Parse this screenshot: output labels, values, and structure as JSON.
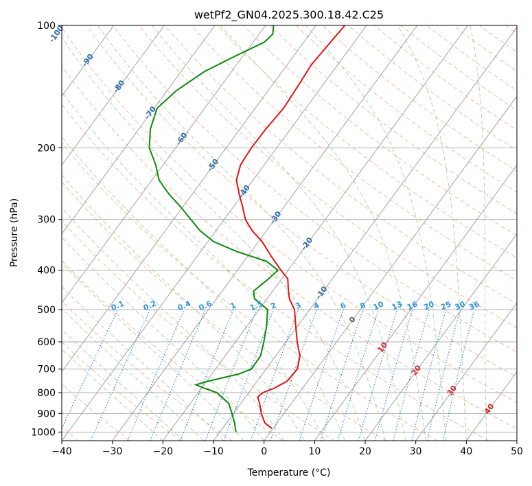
{
  "chart_data": {
    "type": "skew-t",
    "title": "wetPf2_GN04.2025.300.18.42.C25",
    "xlabel": "Temperature (°C)",
    "ylabel": "Pressure (hPa)",
    "xlim": [
      -40,
      50
    ],
    "ylim": [
      1050,
      100
    ],
    "x_ticks": [
      -40,
      -30,
      -20,
      -10,
      0,
      10,
      20,
      30,
      40,
      50
    ],
    "x_tick_labels": [
      "−40",
      "−30",
      "−20",
      "−10",
      "0",
      "10",
      "20",
      "30",
      "40",
      "50"
    ],
    "y_ticks": [
      1000,
      900,
      800,
      700,
      600,
      500,
      400,
      300,
      200,
      100
    ],
    "y_tick_labels": [
      "1000",
      "900",
      "800",
      "700",
      "600",
      "500",
      "400",
      "300",
      "200",
      "100"
    ],
    "colors": {
      "temperature": "#e8120c",
      "dewpoint": "#0a8a0a",
      "isotherm": "#999999",
      "dry_adiabat": "#f4a582",
      "moist_adiabat": "#8fc98f",
      "mixing_ratio": "#1e7ad6",
      "label_blue": "#2a6eb0",
      "label_red": "#d62728",
      "label_lightblue": "#2f95e8"
    },
    "series": [
      {
        "name": "temperature",
        "color": "#e8120c",
        "points": [
          {
            "p": 980,
            "t": -0.2
          },
          {
            "p": 950,
            "t": -2.4
          },
          {
            "p": 900,
            "t": -4.5
          },
          {
            "p": 850,
            "t": -6.3
          },
          {
            "p": 820,
            "t": -7.6
          },
          {
            "p": 800,
            "t": -7.2
          },
          {
            "p": 780,
            "t": -5.6
          },
          {
            "p": 750,
            "t": -4.1
          },
          {
            "p": 700,
            "t": -3.8
          },
          {
            "p": 650,
            "t": -5.2
          },
          {
            "p": 600,
            "t": -7.8
          },
          {
            "p": 550,
            "t": -10.3
          },
          {
            "p": 500,
            "t": -13.0
          },
          {
            "p": 470,
            "t": -15.6
          },
          {
            "p": 450,
            "t": -16.9
          },
          {
            "p": 420,
            "t": -18.8
          },
          {
            "p": 400,
            "t": -21.4
          },
          {
            "p": 370,
            "t": -25.3
          },
          {
            "p": 340,
            "t": -29.3
          },
          {
            "p": 320,
            "t": -32.8
          },
          {
            "p": 300,
            "t": -35.8
          },
          {
            "p": 280,
            "t": -38.1
          },
          {
            "p": 260,
            "t": -40.7
          },
          {
            "p": 240,
            "t": -43.3
          },
          {
            "p": 220,
            "t": -44.7
          },
          {
            "p": 200,
            "t": -45.0
          },
          {
            "p": 180,
            "t": -44.9
          },
          {
            "p": 160,
            "t": -44.4
          },
          {
            "p": 140,
            "t": -44.8
          },
          {
            "p": 125,
            "t": -45.2
          },
          {
            "p": 110,
            "t": -44.7
          },
          {
            "p": 100,
            "t": -44.3
          }
        ]
      },
      {
        "name": "dewpoint",
        "color": "#0a8a0a",
        "points": [
          {
            "p": 1000,
            "t": -6.8
          },
          {
            "p": 950,
            "t": -8.4
          },
          {
            "p": 900,
            "t": -10.3
          },
          {
            "p": 850,
            "t": -12.4
          },
          {
            "p": 800,
            "t": -16.3
          },
          {
            "p": 780,
            "t": -19.5
          },
          {
            "p": 765,
            "t": -21.6
          },
          {
            "p": 750,
            "t": -19.7
          },
          {
            "p": 720,
            "t": -14.7
          },
          {
            "p": 700,
            "t": -12.9
          },
          {
            "p": 650,
            "t": -13.0
          },
          {
            "p": 600,
            "t": -14.4
          },
          {
            "p": 550,
            "t": -16.1
          },
          {
            "p": 500,
            "t": -18.3
          },
          {
            "p": 470,
            "t": -22.5
          },
          {
            "p": 450,
            "t": -23.8
          },
          {
            "p": 420,
            "t": -22.6
          },
          {
            "p": 400,
            "t": -22.0
          },
          {
            "p": 380,
            "t": -25.6
          },
          {
            "p": 360,
            "t": -32.8
          },
          {
            "p": 340,
            "t": -38.9
          },
          {
            "p": 320,
            "t": -43.1
          },
          {
            "p": 300,
            "t": -46.6
          },
          {
            "p": 280,
            "t": -50.3
          },
          {
            "p": 260,
            "t": -54.6
          },
          {
            "p": 240,
            "t": -58.6
          },
          {
            "p": 220,
            "t": -61.5
          },
          {
            "p": 200,
            "t": -65.2
          },
          {
            "p": 180,
            "t": -67.7
          },
          {
            "p": 160,
            "t": -69.4
          },
          {
            "p": 145,
            "t": -68.2
          },
          {
            "p": 130,
            "t": -65.4
          },
          {
            "p": 120,
            "t": -61.9
          },
          {
            "p": 110,
            "t": -57.8
          },
          {
            "p": 105,
            "t": -57.3
          },
          {
            "p": 100,
            "t": -58.4
          }
        ]
      }
    ],
    "isotherm_labels": [
      "-100",
      "-90",
      "-80",
      "-70",
      "-60",
      "-50",
      "-40",
      "-30",
      "-20",
      "-10",
      "0",
      "10",
      "20",
      "30",
      "40"
    ],
    "isotherm_label_values": [
      -100,
      -90,
      -80,
      -70,
      -60,
      -50,
      -40,
      -30,
      -20,
      -10,
      0,
      10,
      20,
      30,
      40
    ],
    "mixing_ratio_labels": [
      "0.1",
      "0.2",
      "0.4",
      "0.6",
      "1",
      "1.5",
      "2",
      "3",
      "4",
      "6",
      "8",
      "10",
      "13",
      "16",
      "20",
      "25",
      "30",
      "36"
    ],
    "mixing_ratio_values": [
      0.1,
      0.2,
      0.4,
      0.6,
      1,
      1.5,
      2,
      3,
      4,
      6,
      8,
      10,
      13,
      16,
      20,
      25,
      30,
      36
    ]
  }
}
